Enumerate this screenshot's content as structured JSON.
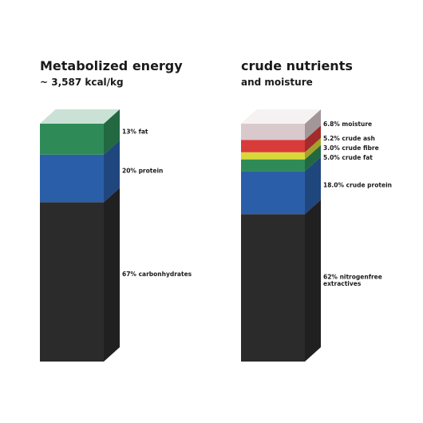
{
  "chart_data": [
    {
      "type": "stacked-column",
      "title": "Metabolized energy",
      "subtitle": "~ 3,587 kcal/kg",
      "ylim": [
        0,
        100
      ],
      "series": [
        {
          "color": "#2b2b2b",
          "values": [
            67
          ],
          "value_labels": [
            "67% carbonhydrates"
          ]
        },
        {
          "color": "#2b5ea8",
          "values": [
            20
          ],
          "value_labels": [
            "20% protein"
          ]
        },
        {
          "color": "#2e8b57",
          "values": [
            13
          ],
          "value_labels": [
            "13% fat"
          ]
        }
      ]
    },
    {
      "type": "stacked-column",
      "title": "crude nutrients",
      "subtitle": "and moisture",
      "ylim": [
        0,
        100
      ],
      "series": [
        {
          "color": "#2b2b2b",
          "values": [
            62
          ],
          "value_labels": [
            "62% nitrogenfree extractives"
          ]
        },
        {
          "color": "#2b5ea8",
          "values": [
            18.0
          ],
          "value_labels": [
            "18.0% crude protein"
          ]
        },
        {
          "color": "#2e8b57",
          "values": [
            5.0
          ],
          "value_labels": [
            "5.0% crude fat"
          ]
        },
        {
          "color": "#d8d838",
          "values": [
            3.0
          ],
          "value_labels": [
            "3.0% crude fibre"
          ]
        },
        {
          "color": "#d93a3a",
          "values": [
            5.2
          ],
          "value_labels": [
            "5.2% crude ash"
          ]
        },
        {
          "color": "#d9c9cd",
          "values": [
            6.8
          ],
          "value_labels": [
            "6.8% moisture"
          ]
        }
      ]
    }
  ]
}
